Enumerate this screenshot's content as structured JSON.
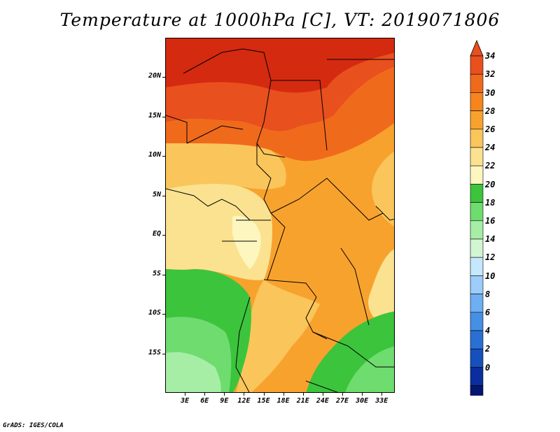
{
  "title": "Temperature at 1000hPa [C], VT: 2019071806",
  "credit": "GrADS: IGES/COLA",
  "axes": {
    "lat_labels": [
      "20N",
      "15N",
      "10N",
      "5N",
      "EQ",
      "5S",
      "10S",
      "15S"
    ],
    "lat_values": [
      20,
      15,
      10,
      5,
      0,
      -5,
      -10,
      -15
    ],
    "lon_labels": [
      "3E",
      "6E",
      "9E",
      "12E",
      "15E",
      "18E",
      "21E",
      "24E",
      "27E",
      "30E",
      "33E"
    ],
    "lon_values": [
      3,
      6,
      9,
      12,
      15,
      18,
      21,
      24,
      27,
      30,
      33
    ]
  },
  "map_extent": {
    "lon_min": 0,
    "lon_max": 35,
    "lat_min": -20,
    "lat_max": 25
  },
  "colorbar": {
    "labels": [
      "34",
      "32",
      "30",
      "28",
      "26",
      "24",
      "22",
      "20",
      "18",
      "16",
      "14",
      "12",
      "10",
      "8",
      "6",
      "4",
      "2",
      "0"
    ],
    "levels": [
      34,
      32,
      30,
      28,
      26,
      24,
      22,
      20,
      18,
      16,
      14,
      12,
      10,
      8,
      6,
      4,
      2,
      0
    ],
    "colors_top_to_bottom": [
      "#e8501e",
      "#f06a1c",
      "#f6851e",
      "#f8a22e",
      "#fac55a",
      "#fbe290",
      "#fdf6bf",
      "#3cc43c",
      "#6edc6e",
      "#a6eea6",
      "#d2f6d2",
      "#c6e8fc",
      "#9ccdfa",
      "#6eaef2",
      "#4690e4",
      "#2a70d4",
      "#1550bc",
      "#0a2e9e",
      "#04166e"
    ],
    "overflow_top_color": "#e8501e",
    "underflow_bottom_color": "#e6e6fa"
  }
}
